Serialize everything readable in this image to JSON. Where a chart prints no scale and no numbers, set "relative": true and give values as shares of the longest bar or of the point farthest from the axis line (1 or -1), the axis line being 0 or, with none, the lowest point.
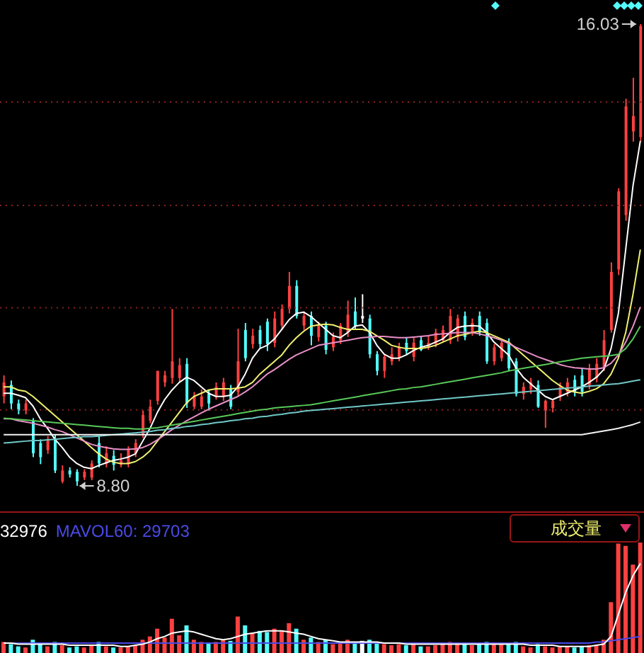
{
  "chart_data": [
    {
      "type": "candlestick",
      "tick_labels": false,
      "grid": "y",
      "yticks": [
        {
          "value": 9.99,
          "label": null
        },
        {
          "value": 11.59,
          "label": null
        },
        {
          "value": 13.19,
          "label": null
        },
        {
          "value": 14.81,
          "label": null
        }
      ],
      "categories": [
        null,
        null,
        null,
        null,
        null,
        null,
        null,
        null,
        null,
        null,
        null,
        null,
        null,
        null,
        null,
        null,
        null,
        null,
        null,
        null,
        null,
        null,
        null,
        null,
        null,
        null,
        null,
        null,
        null,
        null,
        null,
        null,
        null,
        null,
        null,
        null,
        null,
        null,
        null,
        null,
        null,
        null,
        null,
        null,
        null,
        null,
        null,
        null,
        null,
        null,
        null,
        null,
        null,
        null,
        null,
        null,
        null,
        null,
        null,
        null,
        null,
        null,
        null,
        null,
        null,
        null,
        null,
        null,
        null,
        null,
        null,
        null,
        null,
        null,
        null,
        null,
        null,
        null,
        null,
        null,
        null,
        null,
        null,
        null,
        null,
        null,
        null,
        null
      ],
      "ohlc": [
        [
          10.2,
          10.53,
          10.09,
          10.42
        ],
        [
          10.38,
          10.45,
          10.0,
          10.09
        ],
        [
          10.09,
          10.15,
          9.92,
          9.98
        ],
        [
          9.98,
          10.15,
          9.92,
          10.09
        ],
        [
          9.82,
          9.86,
          9.25,
          9.31
        ],
        [
          9.47,
          9.53,
          9.14,
          9.25
        ],
        [
          9.36,
          9.58,
          9.3,
          9.53
        ],
        [
          9.53,
          9.6,
          9.0,
          9.04
        ],
        [
          8.87,
          9.12,
          8.84,
          9.04
        ],
        [
          9.04,
          9.09,
          8.93,
          8.98
        ],
        [
          9.02,
          9.06,
          8.8,
          8.87
        ],
        [
          8.93,
          9.06,
          8.89,
          9.02
        ],
        [
          8.93,
          9.2,
          8.89,
          9.15
        ],
        [
          9.47,
          9.58,
          9.09,
          9.15
        ],
        [
          9.15,
          9.42,
          9.09,
          9.31
        ],
        [
          9.27,
          9.36,
          9.04,
          9.13
        ],
        [
          9.13,
          9.31,
          9.09,
          9.2
        ],
        [
          9.15,
          9.42,
          9.09,
          9.36
        ],
        [
          9.31,
          9.53,
          9.25,
          9.47
        ],
        [
          9.6,
          9.98,
          9.55,
          9.91
        ],
        [
          9.82,
          10.15,
          9.78,
          10.04
        ],
        [
          10.13,
          10.6,
          10.07,
          10.6
        ],
        [
          10.42,
          10.6,
          10.35,
          10.53
        ],
        [
          10.49,
          11.57,
          10.4,
          10.75
        ],
        [
          10.49,
          10.8,
          10.42,
          10.69
        ],
        [
          10.71,
          10.8,
          10.02,
          10.09
        ],
        [
          10.04,
          10.27,
          10.0,
          10.2
        ],
        [
          10.04,
          10.31,
          10.0,
          10.2
        ],
        [
          10.24,
          10.31,
          9.98,
          10.09
        ],
        [
          10.2,
          10.42,
          10.15,
          10.35
        ],
        [
          10.2,
          10.49,
          10.13,
          10.42
        ],
        [
          10.31,
          10.38,
          10.0,
          10.04
        ],
        [
          10.27,
          11.26,
          10.2,
          10.75
        ],
        [
          11.24,
          11.35,
          10.75,
          10.8
        ],
        [
          11.02,
          11.26,
          10.95,
          11.15
        ],
        [
          11.24,
          11.31,
          10.95,
          11.02
        ],
        [
          11.37,
          11.42,
          10.91,
          11.02
        ],
        [
          11.04,
          11.53,
          10.97,
          11.42
        ],
        [
          11.31,
          11.64,
          11.24,
          11.57
        ],
        [
          11.57,
          12.15,
          11.5,
          11.93
        ],
        [
          11.93,
          12.02,
          11.42,
          11.46
        ],
        [
          11.31,
          11.53,
          11.24,
          11.46
        ],
        [
          11.46,
          11.53,
          11.0,
          11.15
        ],
        [
          11.13,
          11.37,
          11.06,
          11.31
        ],
        [
          11.31,
          11.37,
          10.86,
          10.93
        ],
        [
          10.97,
          11.2,
          10.91,
          11.13
        ],
        [
          11.08,
          11.35,
          11.02,
          11.31
        ],
        [
          11.2,
          11.7,
          11.13,
          11.48
        ],
        [
          11.53,
          11.75,
          11.24,
          11.31
        ],
        [
          11.42,
          11.8,
          11.35,
          11.46
        ],
        [
          11.42,
          11.48,
          10.8,
          10.86
        ],
        [
          10.86,
          10.91,
          10.53,
          10.6
        ],
        [
          10.6,
          10.86,
          10.49,
          10.82
        ],
        [
          10.75,
          10.97,
          10.69,
          10.86
        ],
        [
          10.8,
          11.04,
          10.75,
          10.97
        ],
        [
          11.04,
          11.13,
          10.86,
          10.91
        ],
        [
          10.82,
          11.13,
          10.75,
          11.04
        ],
        [
          11.08,
          11.15,
          10.91,
          10.93
        ],
        [
          10.97,
          11.15,
          10.93,
          11.04
        ],
        [
          11.02,
          11.26,
          10.97,
          11.2
        ],
        [
          11.08,
          11.31,
          11.04,
          11.24
        ],
        [
          11.08,
          11.57,
          11.02,
          11.46
        ],
        [
          11.13,
          11.48,
          11.06,
          11.42
        ],
        [
          11.46,
          11.53,
          11.08,
          11.13
        ],
        [
          11.2,
          11.42,
          11.15,
          11.35
        ],
        [
          11.46,
          11.53,
          11.15,
          11.2
        ],
        [
          11.35,
          11.42,
          10.71,
          10.75
        ],
        [
          10.75,
          11.02,
          10.69,
          10.97
        ],
        [
          10.8,
          11.08,
          10.75,
          11.04
        ],
        [
          11.04,
          11.11,
          10.6,
          10.64
        ],
        [
          10.75,
          10.8,
          10.2,
          10.24
        ],
        [
          10.24,
          10.42,
          10.15,
          10.35
        ],
        [
          10.31,
          10.49,
          10.24,
          10.42
        ],
        [
          10.38,
          10.45,
          10.02,
          10.04
        ],
        [
          9.98,
          10.15,
          9.71,
          10.13
        ],
        [
          10.02,
          10.15,
          9.95,
          10.13
        ],
        [
          10.2,
          10.42,
          10.13,
          10.35
        ],
        [
          10.27,
          10.49,
          10.2,
          10.42
        ],
        [
          10.46,
          10.53,
          10.2,
          10.27
        ],
        [
          10.53,
          10.64,
          10.2,
          10.27
        ],
        [
          10.38,
          10.71,
          10.31,
          10.64
        ],
        [
          10.49,
          10.8,
          10.42,
          10.71
        ],
        [
          10.64,
          11.24,
          10.6,
          11.08
        ],
        [
          11.24,
          12.3,
          11.2,
          12.15
        ],
        [
          12.19,
          13.46,
          12.1,
          13.41
        ],
        [
          13.04,
          14.86,
          12.95,
          14.74
        ],
        [
          14.35,
          15.19,
          14.19,
          14.59
        ],
        [
          14.26,
          16.03,
          14.19,
          16.0
        ]
      ],
      "colors": [
        "#ff4040",
        "#54fcfc",
        "#54fcfc",
        "#ff4040",
        "#54fcfc",
        "#54fcfc",
        "#ff4040",
        "#54fcfc",
        "#ff4040",
        "#54fcfc",
        "#54fcfc",
        "#ff4040",
        "#ff4040",
        "#54fcfc",
        "#ff4040",
        "#54fcfc",
        "#ff4040",
        "#ff4040",
        "#ff4040",
        "#ff4040",
        "#ff4040",
        "#ff4040",
        "#ff4040",
        "#ff4040",
        "#ff4040",
        "#54fcfc",
        "#ff4040",
        "#ff4040",
        "#54fcfc",
        "#ff4040",
        "#ff4040",
        "#54fcfc",
        "#ff4040",
        "#54fcfc",
        "#ff4040",
        "#54fcfc",
        "#54fcfc",
        "#ff4040",
        "#ff4040",
        "#ff4040",
        "#54fcfc",
        "#ff4040",
        "#54fcfc",
        "#ff4040",
        "#54fcfc",
        "#ff4040",
        "#ff4040",
        "#ff4040",
        "#54fcfc",
        "#ffffff",
        "#54fcfc",
        "#54fcfc",
        "#ff4040",
        "#ff4040",
        "#ff4040",
        "#54fcfc",
        "#ff4040",
        "#54fcfc",
        "#ff4040",
        "#ff4040",
        "#ff4040",
        "#ff4040",
        "#ff4040",
        "#54fcfc",
        "#ff4040",
        "#54fcfc",
        "#54fcfc",
        "#ff4040",
        "#ff4040",
        "#54fcfc",
        "#54fcfc",
        "#ff4040",
        "#ff4040",
        "#54fcfc",
        "#ff4040",
        "#ff4040",
        "#ff4040",
        "#ff4040",
        "#54fcfc",
        "#54fcfc",
        "#ff4040",
        "#ff4040",
        "#ff4040",
        "#ff4040",
        "#ff4040",
        "#ff4040",
        "#ff4040",
        "#ff4040"
      ],
      "series": [
        {
          "type": "line",
          "color": "#ffffff",
          "values": [
            10.25,
            10.25,
            10.22,
            10.18,
            10.05,
            9.85,
            9.7,
            9.53,
            9.4,
            9.25,
            9.15,
            9.09,
            9.07,
            9.12,
            9.16,
            9.2,
            9.22,
            9.25,
            9.3,
            9.5,
            9.7,
            9.95,
            10.15,
            10.3,
            10.42,
            10.5,
            10.45,
            10.35,
            10.25,
            10.2,
            10.2,
            10.22,
            10.35,
            10.55,
            10.8,
            10.95,
            11.0,
            11.1,
            11.25,
            11.4,
            11.5,
            11.52,
            11.45,
            11.35,
            11.25,
            11.15,
            11.12,
            11.2,
            11.3,
            11.32,
            11.2,
            11.0,
            10.86,
            10.8,
            10.8,
            10.85,
            10.92,
            10.97,
            11.0,
            11.05,
            11.1,
            11.2,
            11.28,
            11.3,
            11.31,
            11.3,
            11.2,
            11.05,
            10.95,
            10.85,
            10.65,
            10.5,
            10.4,
            10.3,
            10.2,
            10.15,
            10.2,
            10.25,
            10.3,
            10.35,
            10.42,
            10.5,
            10.62,
            10.95,
            11.5,
            12.5,
            13.5,
            14.2
          ]
        },
        {
          "type": "line",
          "color": "#f0f070",
          "values": [
            10.35,
            10.35,
            10.3,
            10.28,
            10.2,
            10.1,
            10.0,
            9.9,
            9.8,
            9.7,
            9.6,
            9.5,
            9.4,
            9.3,
            9.22,
            9.17,
            9.15,
            9.15,
            9.18,
            9.25,
            9.35,
            9.5,
            9.65,
            9.8,
            9.95,
            10.1,
            10.2,
            10.25,
            10.3,
            10.32,
            10.32,
            10.32,
            10.33,
            10.35,
            10.42,
            10.55,
            10.65,
            10.75,
            10.85,
            11.0,
            11.12,
            11.22,
            11.3,
            11.32,
            11.33,
            11.32,
            11.28,
            11.25,
            11.25,
            11.25,
            11.22,
            11.15,
            11.08,
            11.0,
            10.97,
            10.95,
            10.95,
            10.95,
            10.97,
            11.0,
            11.05,
            11.1,
            11.15,
            11.17,
            11.2,
            11.22,
            11.2,
            11.15,
            11.1,
            11.05,
            10.95,
            10.85,
            10.75,
            10.65,
            10.55,
            10.45,
            10.37,
            10.3,
            10.27,
            10.25,
            10.28,
            10.32,
            10.4,
            10.55,
            10.8,
            11.2,
            11.8,
            12.5
          ]
        },
        {
          "type": "line",
          "color": "#e890c8",
          "values": [
            9.85,
            9.85,
            9.82,
            9.8,
            9.78,
            9.75,
            9.72,
            9.68,
            9.65,
            9.6,
            9.55,
            9.5,
            9.45,
            9.42,
            9.4,
            9.38,
            9.37,
            9.37,
            9.38,
            9.4,
            9.45,
            9.52,
            9.6,
            9.68,
            9.75,
            9.82,
            9.88,
            9.94,
            10.0,
            10.05,
            10.1,
            10.15,
            10.2,
            10.27,
            10.35,
            10.45,
            10.55,
            10.62,
            10.7,
            10.78,
            10.85,
            10.9,
            10.95,
            11.0,
            11.02,
            11.04,
            11.06,
            11.08,
            11.1,
            11.12,
            11.13,
            11.14,
            11.14,
            11.13,
            11.12,
            11.12,
            11.13,
            11.14,
            11.15,
            11.17,
            11.18,
            11.19,
            11.2,
            11.2,
            11.2,
            11.18,
            11.15,
            11.12,
            11.08,
            11.03,
            10.97,
            10.92,
            10.87,
            10.82,
            10.78,
            10.74,
            10.7,
            10.67,
            10.65,
            10.64,
            10.63,
            10.63,
            10.65,
            10.72,
            10.85,
            11.05,
            11.3,
            11.6
          ]
        },
        {
          "type": "line",
          "color": "#58c858",
          "values": [
            9.86,
            9.85,
            9.84,
            9.83,
            9.82,
            9.81,
            9.8,
            9.79,
            9.78,
            9.77,
            9.76,
            9.75,
            9.74,
            9.73,
            9.72,
            9.71,
            9.7,
            9.7,
            9.69,
            9.69,
            9.7,
            9.71,
            9.73,
            9.75,
            9.77,
            9.79,
            9.81,
            9.83,
            9.85,
            9.87,
            9.89,
            9.91,
            9.93,
            9.95,
            9.97,
            9.99,
            10.0,
            10.02,
            10.03,
            10.04,
            10.05,
            10.06,
            10.07,
            10.09,
            10.11,
            10.13,
            10.15,
            10.17,
            10.19,
            10.21,
            10.23,
            10.25,
            10.27,
            10.29,
            10.31,
            10.32,
            10.34,
            10.35,
            10.37,
            10.39,
            10.41,
            10.43,
            10.45,
            10.47,
            10.49,
            10.51,
            10.53,
            10.55,
            10.57,
            10.6,
            10.62,
            10.64,
            10.66,
            10.68,
            10.7,
            10.72,
            10.74,
            10.76,
            10.78,
            10.8,
            10.81,
            10.82,
            10.83,
            10.84,
            10.86,
            10.95,
            11.1,
            11.3
          ]
        },
        {
          "type": "line",
          "color": "#70c8c8",
          "values": [
            9.47,
            9.48,
            9.49,
            9.5,
            9.51,
            9.51,
            9.52,
            9.53,
            9.54,
            9.55,
            9.56,
            9.57,
            9.57,
            9.58,
            9.59,
            9.6,
            9.61,
            9.62,
            9.63,
            9.64,
            9.65,
            9.67,
            9.68,
            9.7,
            9.71,
            9.73,
            9.74,
            9.76,
            9.77,
            9.79,
            9.8,
            9.82,
            9.83,
            9.85,
            9.86,
            9.88,
            9.89,
            9.91,
            9.92,
            9.94,
            9.95,
            9.97,
            9.98,
            9.99,
            10.0,
            10.01,
            10.02,
            10.03,
            10.04,
            10.05,
            10.06,
            10.07,
            10.08,
            10.09,
            10.1,
            10.11,
            10.12,
            10.13,
            10.14,
            10.15,
            10.16,
            10.17,
            10.18,
            10.19,
            10.2,
            10.21,
            10.22,
            10.23,
            10.24,
            10.25,
            10.26,
            10.27,
            10.28,
            10.29,
            10.3,
            10.31,
            10.32,
            10.33,
            10.34,
            10.35,
            10.36,
            10.37,
            10.38,
            10.39,
            10.4,
            10.42,
            10.44,
            10.46
          ]
        },
        {
          "type": "line",
          "color": "#f4f4f4",
          "values": [
            9.6,
            9.6,
            9.6,
            9.6,
            9.6,
            9.6,
            9.6,
            9.6,
            9.6,
            9.6,
            9.6,
            9.6,
            9.6,
            9.6,
            9.6,
            9.6,
            9.6,
            9.6,
            9.6,
            9.6,
            9.6,
            9.6,
            9.6,
            9.6,
            9.6,
            9.6,
            9.6,
            9.6,
            9.6,
            9.6,
            9.6,
            9.6,
            9.6,
            9.6,
            9.6,
            9.6,
            9.6,
            9.6,
            9.6,
            9.6,
            9.6,
            9.6,
            9.6,
            9.6,
            9.6,
            9.6,
            9.6,
            9.6,
            9.6,
            9.6,
            9.6,
            9.6,
            9.6,
            9.6,
            9.6,
            9.6,
            9.6,
            9.6,
            9.6,
            9.6,
            9.6,
            9.6,
            9.6,
            9.6,
            9.6,
            9.6,
            9.6,
            9.6,
            9.6,
            9.6,
            9.6,
            9.6,
            9.6,
            9.6,
            9.6,
            9.6,
            9.6,
            9.6,
            9.6,
            9.6,
            9.62,
            9.64,
            9.66,
            9.68,
            9.7,
            9.73,
            9.76,
            9.8
          ]
        }
      ],
      "annotations": [
        "16.03",
        "8.80"
      ]
    },
    {
      "type": "bar",
      "relative": true,
      "tick_labels": false,
      "title": "成交量",
      "annotations": [
        "32976",
        "MAVOL60: 29703"
      ],
      "categories": [
        null,
        null,
        null,
        null,
        null,
        null,
        null,
        null,
        null,
        null,
        null,
        null,
        null,
        null,
        null,
        null,
        null,
        null,
        null,
        null,
        null,
        null,
        null,
        null,
        null,
        null,
        null,
        null,
        null,
        null,
        null,
        null,
        null,
        null,
        null,
        null,
        null,
        null,
        null,
        null,
        null,
        null,
        null,
        null,
        null,
        null,
        null,
        null,
        null,
        null,
        null,
        null,
        null,
        null,
        null,
        null,
        null,
        null,
        null,
        null,
        null,
        null,
        null,
        null,
        null,
        null,
        null,
        null,
        null,
        null,
        null,
        null,
        null,
        null,
        null,
        null,
        null,
        null,
        null,
        null,
        null,
        null,
        null,
        null,
        null,
        null,
        null,
        null
      ],
      "series": [
        {
          "type": "bar",
          "colors": [
            "#ff4040",
            "#54fcfc",
            "#54fcfc",
            "#ff4040",
            "#54fcfc",
            "#54fcfc",
            "#ff4040",
            "#54fcfc",
            "#ff4040",
            "#54fcfc",
            "#54fcfc",
            "#ff4040",
            "#ff4040",
            "#54fcfc",
            "#ff4040",
            "#54fcfc",
            "#ff4040",
            "#ff4040",
            "#ff4040",
            "#ff4040",
            "#ff4040",
            "#ff4040",
            "#ff4040",
            "#ff4040",
            "#ff4040",
            "#54fcfc",
            "#ff4040",
            "#ff4040",
            "#54fcfc",
            "#ff4040",
            "#ff4040",
            "#54fcfc",
            "#ff4040",
            "#54fcfc",
            "#ff4040",
            "#54fcfc",
            "#54fcfc",
            "#ff4040",
            "#ff4040",
            "#ff4040",
            "#54fcfc",
            "#ff4040",
            "#54fcfc",
            "#ff4040",
            "#54fcfc",
            "#ff4040",
            "#ff4040",
            "#ff4040",
            "#54fcfc",
            "#ffffff",
            "#54fcfc",
            "#54fcfc",
            "#ff4040",
            "#ff4040",
            "#ff4040",
            "#54fcfc",
            "#ff4040",
            "#54fcfc",
            "#ff4040",
            "#ff4040",
            "#ff4040",
            "#ff4040",
            "#ff4040",
            "#54fcfc",
            "#ff4040",
            "#54fcfc",
            "#54fcfc",
            "#ff4040",
            "#ff4040",
            "#54fcfc",
            "#54fcfc",
            "#ff4040",
            "#ff4040",
            "#54fcfc",
            "#ff4040",
            "#ff4040",
            "#ff4040",
            "#ff4040",
            "#54fcfc",
            "#54fcfc",
            "#ff4040",
            "#ff4040",
            "#ff4040",
            "#ff4040",
            "#ff4040",
            "#ff4040",
            "#ff4040",
            "#ff4040"
          ],
          "values": [
            0.1,
            0.08,
            0.06,
            0.05,
            0.12,
            0.09,
            0.06,
            0.1,
            0.07,
            0.05,
            0.06,
            0.05,
            0.07,
            0.1,
            0.06,
            0.05,
            0.05,
            0.06,
            0.07,
            0.12,
            0.15,
            0.22,
            0.14,
            0.31,
            0.16,
            0.25,
            0.12,
            0.1,
            0.09,
            0.1,
            0.12,
            0.11,
            0.33,
            0.25,
            0.18,
            0.2,
            0.19,
            0.22,
            0.2,
            0.27,
            0.22,
            0.12,
            0.14,
            0.1,
            0.12,
            0.08,
            0.09,
            0.12,
            0.1,
            0.11,
            0.12,
            0.1,
            0.08,
            0.07,
            0.08,
            0.07,
            0.08,
            0.06,
            0.06,
            0.07,
            0.08,
            0.1,
            0.08,
            0.09,
            0.07,
            0.08,
            0.1,
            0.08,
            0.08,
            0.09,
            0.1,
            0.06,
            0.05,
            0.08,
            0.06,
            0.05,
            0.06,
            0.06,
            0.05,
            0.06,
            0.07,
            0.07,
            0.12,
            0.46,
            0.99,
            0.97,
            0.8,
            1
          ]
        },
        {
          "type": "line",
          "color": "#ffffff",
          "values": [
            0.09,
            0.09,
            0.08,
            0.08,
            0.08,
            0.08,
            0.08,
            0.08,
            0.08,
            0.07,
            0.07,
            0.07,
            0.07,
            0.07,
            0.07,
            0.07,
            0.06,
            0.06,
            0.07,
            0.08,
            0.1,
            0.13,
            0.15,
            0.18,
            0.19,
            0.2,
            0.19,
            0.17,
            0.15,
            0.13,
            0.12,
            0.13,
            0.15,
            0.17,
            0.18,
            0.19,
            0.2,
            0.2,
            0.2,
            0.19,
            0.18,
            0.17,
            0.15,
            0.13,
            0.12,
            0.11,
            0.1,
            0.1,
            0.1,
            0.1,
            0.1,
            0.1,
            0.09,
            0.09,
            0.09,
            0.08,
            0.08,
            0.08,
            0.08,
            0.08,
            0.08,
            0.08,
            0.08,
            0.08,
            0.08,
            0.08,
            0.08,
            0.08,
            0.08,
            0.08,
            0.08,
            0.08,
            0.07,
            0.07,
            0.07,
            0.07,
            0.06,
            0.06,
            0.06,
            0.06,
            0.06,
            0.07,
            0.08,
            0.15,
            0.35,
            0.55,
            0.7,
            0.81
          ]
        },
        {
          "type": "line",
          "color": "#4a4ae8",
          "values": [
            0.09,
            0.09,
            0.09,
            0.09,
            0.09,
            0.09,
            0.09,
            0.09,
            0.09,
            0.09,
            0.09,
            0.09,
            0.09,
            0.09,
            0.09,
            0.09,
            0.09,
            0.09,
            0.09,
            0.09,
            0.09,
            0.09,
            0.09,
            0.09,
            0.09,
            0.09,
            0.09,
            0.09,
            0.09,
            0.09,
            0.09,
            0.09,
            0.09,
            0.09,
            0.09,
            0.09,
            0.09,
            0.09,
            0.09,
            0.09,
            0.09,
            0.09,
            0.09,
            0.09,
            0.09,
            0.09,
            0.09,
            0.09,
            0.09,
            0.09,
            0.09,
            0.09,
            0.09,
            0.09,
            0.09,
            0.09,
            0.09,
            0.09,
            0.09,
            0.09,
            0.09,
            0.09,
            0.09,
            0.09,
            0.09,
            0.09,
            0.09,
            0.09,
            0.09,
            0.09,
            0.09,
            0.09,
            0.09,
            0.09,
            0.09,
            0.09,
            0.09,
            0.09,
            0.09,
            0.09,
            0.09,
            0.1,
            0.1,
            0.11,
            0.12,
            0.13,
            0.14,
            0.15
          ]
        }
      ]
    }
  ]
}
